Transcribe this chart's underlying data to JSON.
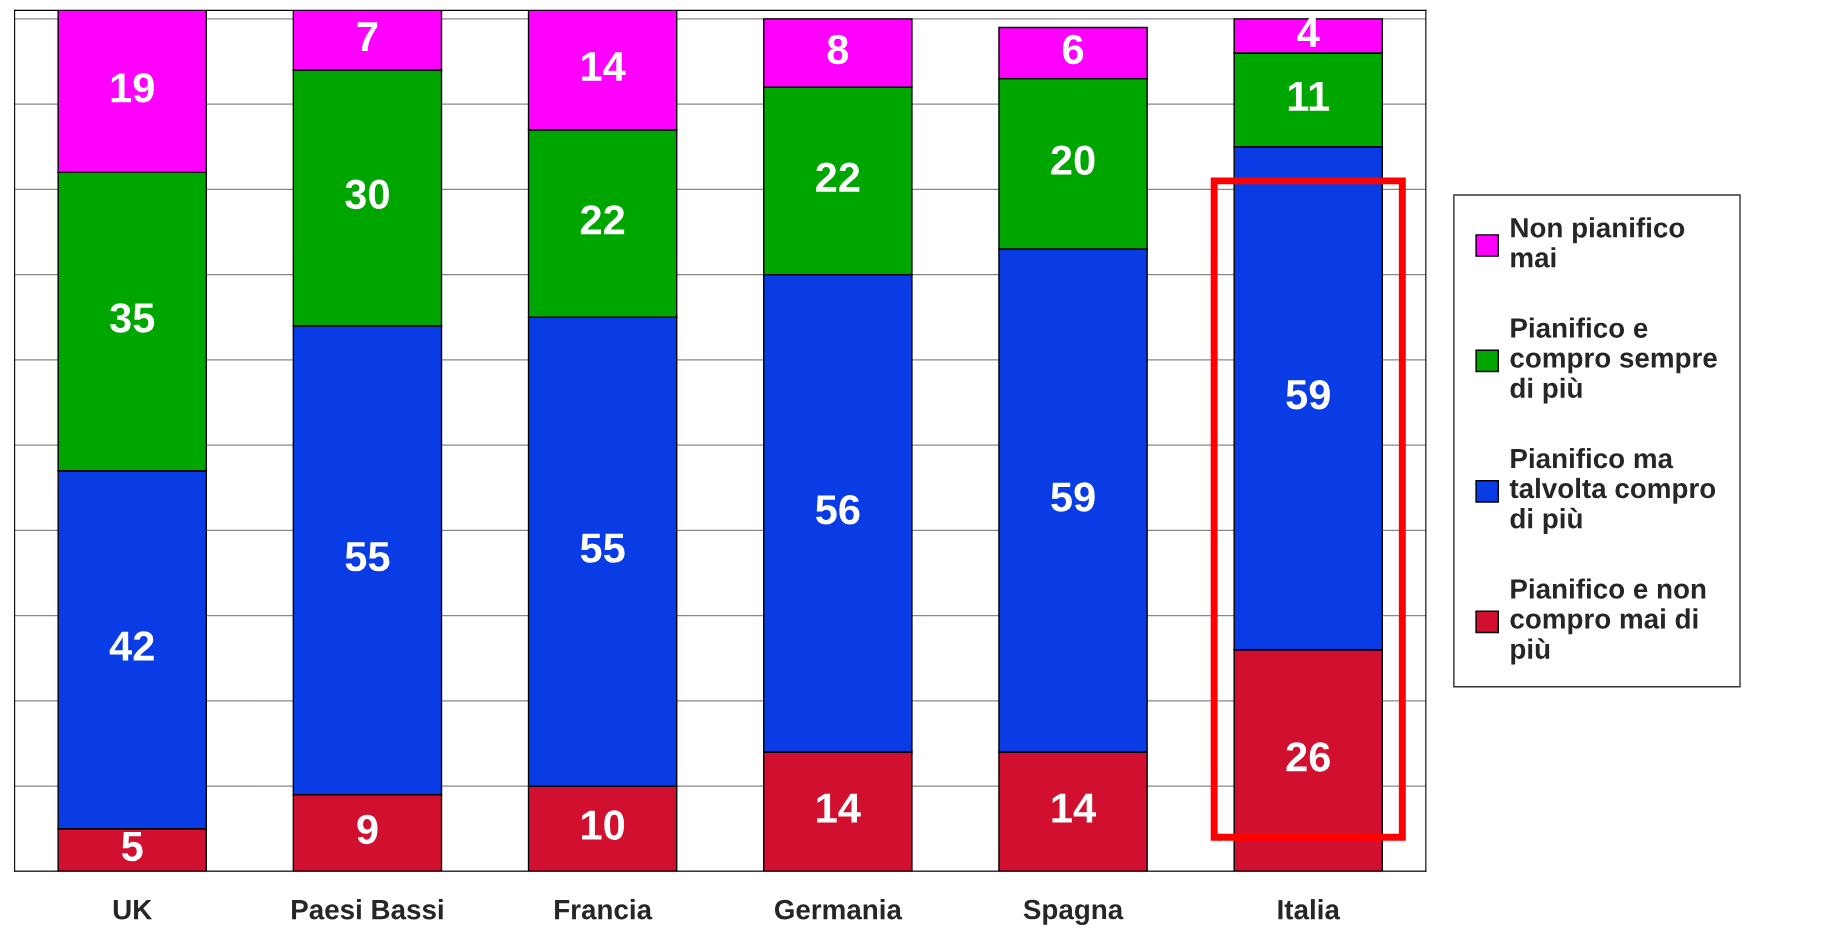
{
  "chart_data": {
    "type": "bar",
    "stacked": true,
    "categories": [
      "UK",
      "Paesi Bassi",
      "Francia",
      "Germania",
      "Spagna",
      "Italia"
    ],
    "series": [
      {
        "name": "Pianifico e non\ncompro mai di\npiù",
        "color": "#d0102e",
        "values": [
          5,
          9,
          10,
          14,
          14,
          26
        ]
      },
      {
        "name": "Pianifico ma\ntalvolta compro\ndi più",
        "color": "#0a3ce6",
        "values": [
          42,
          55,
          55,
          56,
          59,
          59
        ]
      },
      {
        "name": "Pianifico e\ncompro sempre\ndi più",
        "color": "#00a600",
        "values": [
          35,
          30,
          22,
          22,
          20,
          11
        ]
      },
      {
        "name": "Non pianifico\nmai",
        "color": "#ff00ff",
        "values": [
          19,
          7,
          14,
          8,
          6,
          4
        ]
      }
    ],
    "ylim": [
      0,
      101
    ],
    "yticks": [
      {
        "value": 0,
        "label": null
      },
      {
        "value": 10,
        "label": null
      },
      {
        "value": 20,
        "label": null
      },
      {
        "value": 30,
        "label": null
      },
      {
        "value": 40,
        "label": null
      },
      {
        "value": 50,
        "label": null
      },
      {
        "value": 60,
        "label": null
      },
      {
        "value": 70,
        "label": null
      },
      {
        "value": 80,
        "label": null
      },
      {
        "value": 90,
        "label": null
      },
      {
        "value": 100,
        "label": null
      }
    ],
    "tick_labels": "x",
    "grid": "y",
    "legend": "right",
    "data_labels": true
  }
}
